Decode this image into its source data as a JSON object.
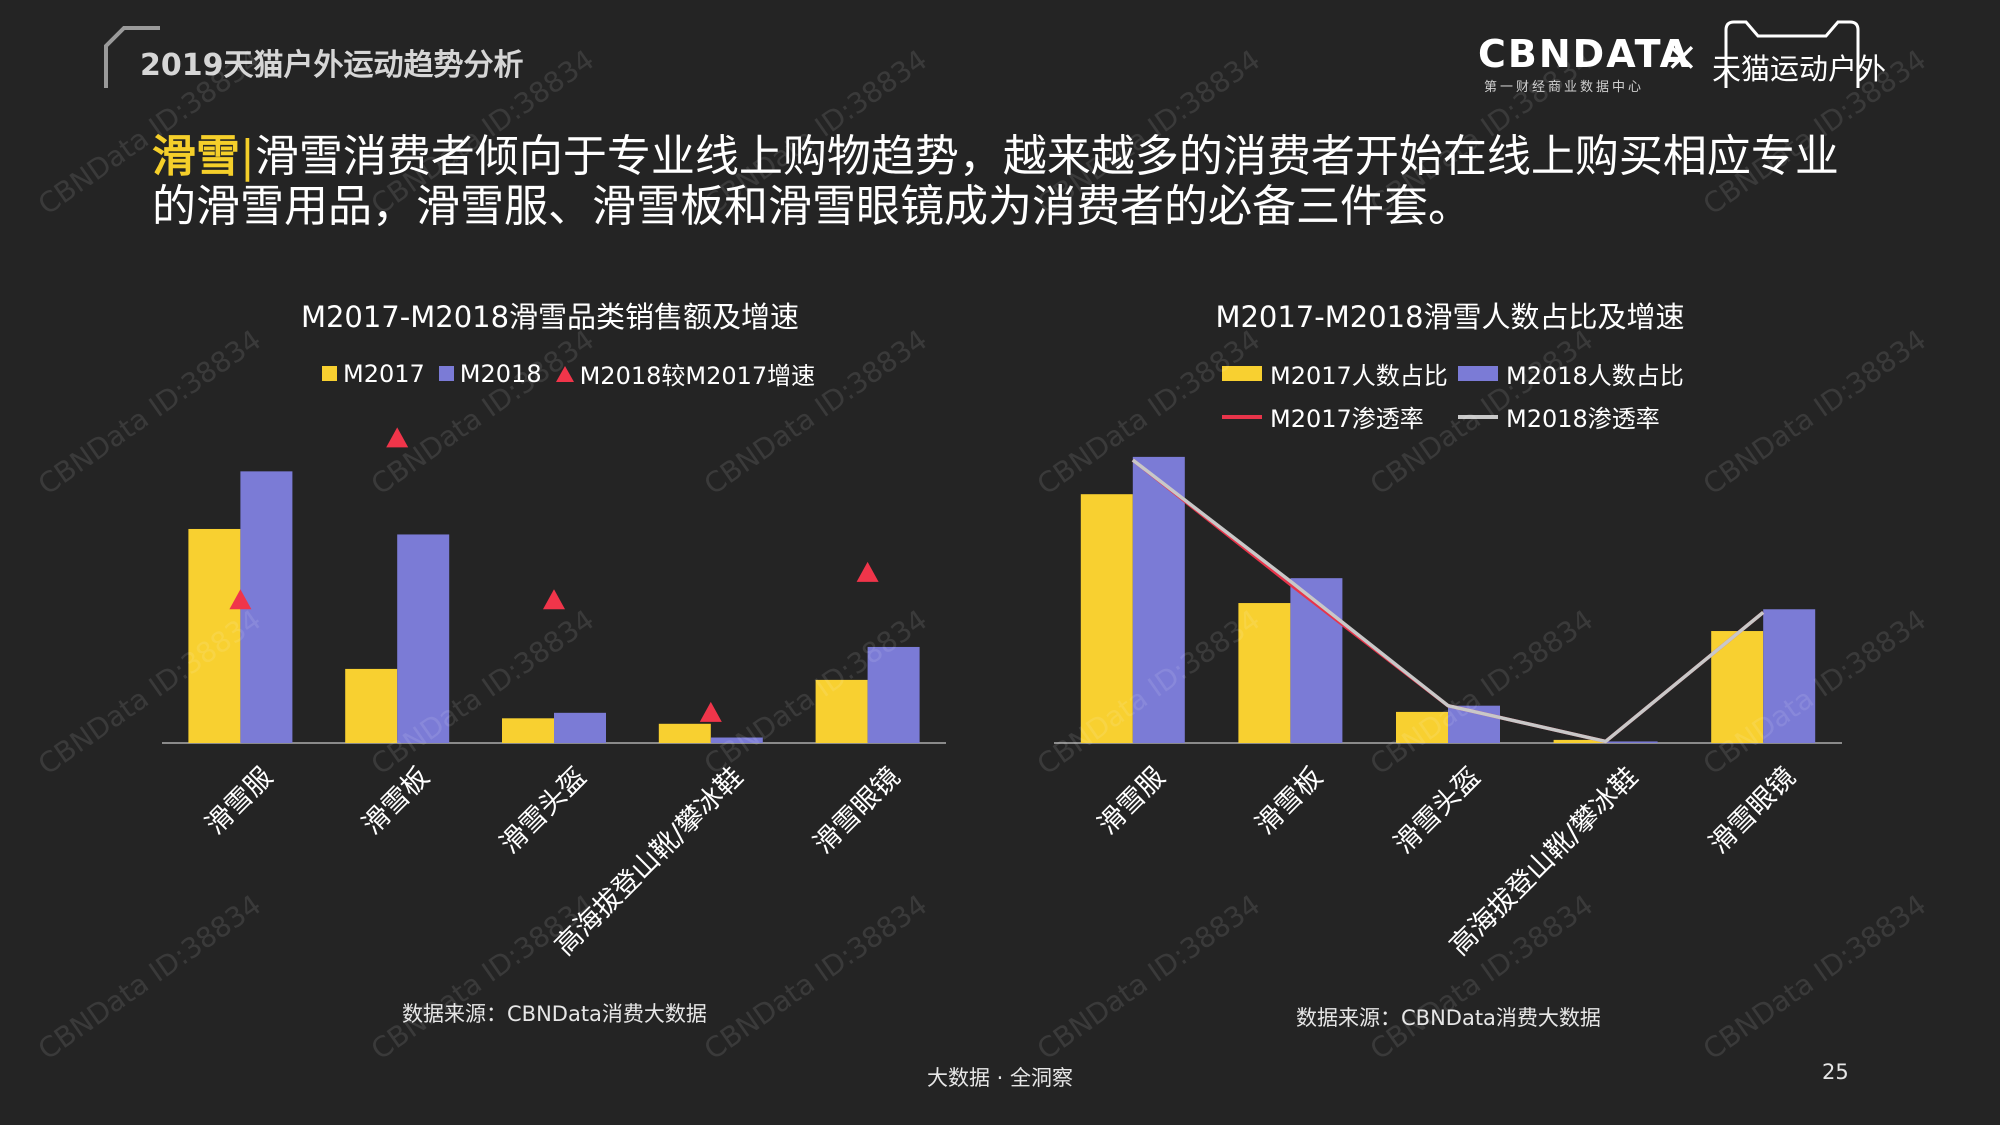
{
  "header": {
    "report_title": "2019天猫户外运动趋势分析",
    "brand_logo": "CBNDATA",
    "brand_sub": "第一财经商业数据中心",
    "times_sign": "×",
    "partner_logo": "天猫运动户外"
  },
  "headline": {
    "tag": "滑雪",
    "separator": "|",
    "text": "滑雪消费者倾向于专业线上购物趋势，越来越多的消费者开始在线上购买相应专业的滑雪用品，滑雪服、滑雪板和滑雪眼镜成为消费者的必备三件套。"
  },
  "chart_data": [
    {
      "type": "bar",
      "title": "M2017-M2018滑雪品类销售额及增速",
      "categories": [
        "滑雪服",
        "滑雪板",
        "滑雪头盔",
        "高海拔登山靴/攀冰鞋",
        "滑雪眼镜"
      ],
      "series": [
        {
          "name": "M2017",
          "kind": "bar",
          "color": "#f8d030",
          "values": [
            78,
            27,
            9,
            7,
            23
          ]
        },
        {
          "name": "M2018",
          "kind": "bar",
          "color": "#7b7bd6",
          "values": [
            99,
            76,
            11,
            2,
            35
          ]
        },
        {
          "name": "M2018较M2017增速",
          "kind": "marker",
          "color": "#f0354a",
          "values": [
            52,
            111,
            52,
            11,
            62
          ]
        }
      ],
      "ylim": [
        0,
        125
      ],
      "legend": "top",
      "grid": false,
      "source": "数据来源：CBNData消费大数据"
    },
    {
      "type": "bar",
      "title": "M2017-M2018滑雪人数占比及增速",
      "categories": [
        "滑雪服",
        "滑雪板",
        "滑雪头盔",
        "高海拔登山靴/攀冰鞋",
        "滑雪眼镜"
      ],
      "series": [
        {
          "name": "M2017人数占比",
          "kind": "bar",
          "color": "#f8d030",
          "values": [
            80,
            45,
            10,
            1,
            36
          ]
        },
        {
          "name": "M2018人数占比",
          "kind": "bar",
          "color": "#7b7bd6",
          "values": [
            92,
            53,
            12,
            0.5,
            43
          ]
        },
        {
          "name": "M2017渗透率",
          "kind": "line",
          "color": "#e8344a",
          "values": [
            91,
            51,
            12,
            0.5,
            42
          ]
        },
        {
          "name": "M2018渗透率",
          "kind": "line",
          "color": "#c8c8c8",
          "values": [
            91,
            52,
            12,
            0.5,
            42
          ]
        }
      ],
      "ylim": [
        0,
        100
      ],
      "legend": "top",
      "grid": false,
      "source": "数据来源：CBNData消费大数据"
    }
  ],
  "footer": {
    "tagline": "大数据 · 全洞察",
    "page_number": "25"
  },
  "watermark": "CBNData ID:38834"
}
